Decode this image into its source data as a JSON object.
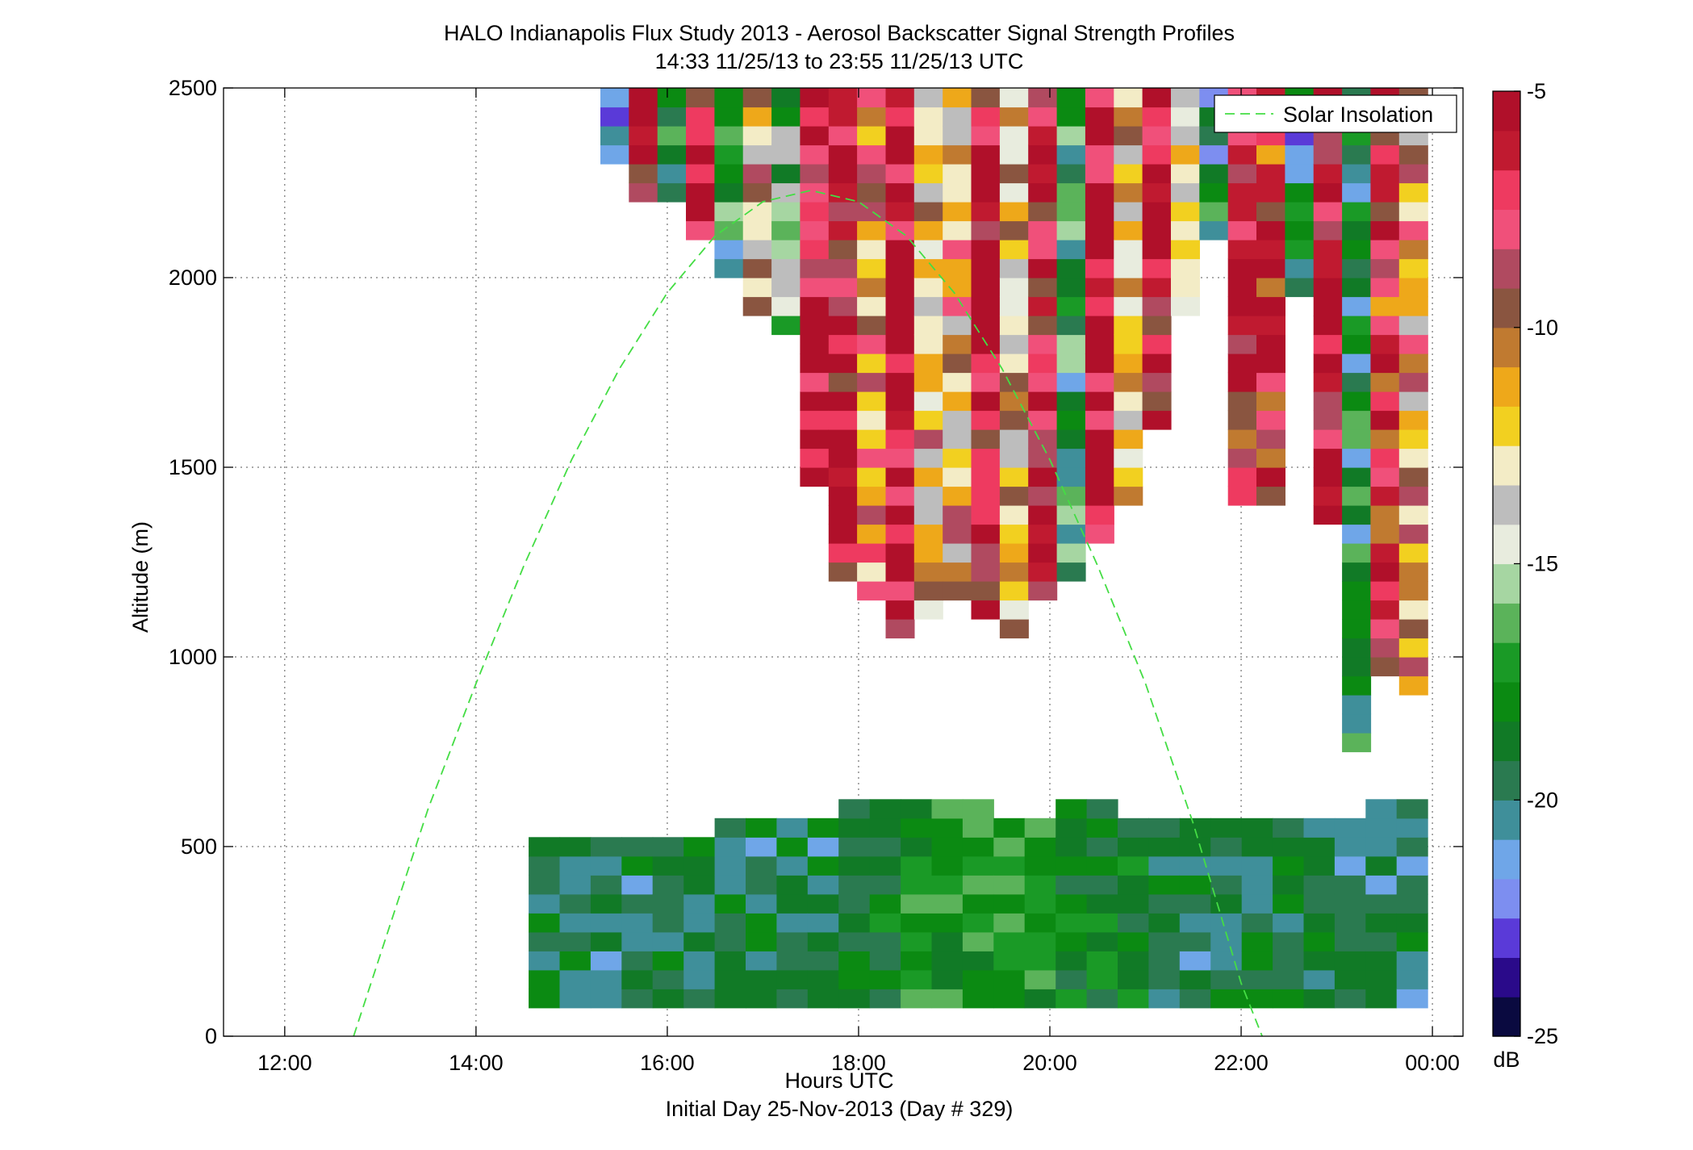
{
  "chart_data": {
    "type": "heatmap",
    "title": "HALO Indianapolis Flux Study 2013 - Aerosol Backscatter Signal Strength Profiles",
    "subtitle": "14:33 11/25/13 to 23:55 11/25/13  UTC",
    "xlabel": "Hours UTC",
    "xlabel2": "Initial Day 25-Nov-2013 (Day # 329)",
    "ylabel": "Altitude (m)",
    "xlim": [
      11.36,
      24.32
    ],
    "ylim": [
      0,
      2500
    ],
    "x_ticks": [
      12,
      14,
      16,
      18,
      20,
      22,
      24
    ],
    "x_tick_labels": [
      "12:00",
      "14:00",
      "16:00",
      "18:00",
      "20:00",
      "22:00",
      "00:00"
    ],
    "y_ticks": [
      0,
      500,
      1000,
      1500,
      2000,
      2500
    ],
    "y_tick_labels": [
      "0",
      "500",
      "1000",
      "1500",
      "2000",
      "2500"
    ],
    "grid": true,
    "colorbar": {
      "label": "dB",
      "min": -25,
      "max": -5,
      "tick_values": [
        -5,
        -10,
        -15,
        -20,
        -25
      ],
      "tick_labels": [
        "-5",
        "-10",
        "-15",
        "-20",
        "-25"
      ],
      "colors": [
        "#0a0a40",
        "#2a0a8a",
        "#5a3ad8",
        "#7d8ef0",
        "#6fa6e8",
        "#3f8f9a",
        "#2a7a50",
        "#117a26",
        "#0b8a12",
        "#1a9a26",
        "#5bb35a",
        "#a6d6a2",
        "#e8ecde",
        "#bdbdbd",
        "#f3ecc6",
        "#f2d020",
        "#eea81a",
        "#c07a30",
        "#8a5540",
        "#b04a60",
        "#f0507a",
        "#ee3a60",
        "#c01a30",
        "#b0102a"
      ]
    },
    "legend": {
      "entries": [
        "Solar Insolation"
      ],
      "position": "top-right"
    },
    "series": [
      {
        "name": "Solar Insolation",
        "style": "dashed",
        "color": "#44dd44",
        "x": [
          12.72,
          13.5,
          14.0,
          14.5,
          15.0,
          15.5,
          16.0,
          16.5,
          17.0,
          17.5,
          18.0,
          18.5,
          19.0,
          19.5,
          20.0,
          20.5,
          21.0,
          21.5,
          22.0,
          22.22
        ],
        "y": [
          0,
          600,
          930,
          1240,
          1520,
          1760,
          1960,
          2110,
          2200,
          2230,
          2200,
          2110,
          1960,
          1760,
          1520,
          1240,
          930,
          560,
          140,
          0
        ]
      }
    ],
    "profiles": {
      "time_start": 14.55,
      "time_step": 0.333,
      "altitude_bin": 50,
      "boundary_layer": {
        "x_start": 14.55,
        "x_end": 23.95,
        "bottom_m": 75,
        "top_m": [
          500,
          500,
          500,
          500,
          500,
          500,
          575,
          575,
          575,
          575,
          600,
          600,
          625,
          625,
          600,
          575,
          575,
          600,
          600,
          575,
          575,
          575,
          575,
          575,
          575,
          575,
          575,
          600,
          600
        ],
        "value_db": [
          -19.5,
          -19.5,
          -19.5,
          -19.5,
          -19.5,
          -19.5,
          -19.5,
          -19.5,
          -19.5,
          -19.5,
          -18.5,
          -18.5,
          -17.5,
          -17.5,
          -17.5,
          -17.5,
          -17.5,
          -18,
          -18.5,
          -18.5,
          -19,
          -19.5,
          -19.5,
          -19,
          -19,
          -19,
          -19.5,
          -19.5,
          -19.5
        ]
      },
      "aloft_layer": {
        "x_start": 15.3,
        "x_end": 23.95,
        "bottom_m": [
          2300,
          2200,
          2200,
          2100,
          2000,
          1900,
          1850,
          1450,
          1200,
          1150,
          1050,
          1100,
          1150,
          1100,
          1050,
          1150,
          1200,
          1300,
          1400,
          1600,
          1900,
          2100,
          1400,
          1400,
          1950,
          1350,
          750,
          950,
          900
        ],
        "top_m": [
          2500,
          2500,
          2500,
          2500,
          2500,
          2500,
          2500,
          2500,
          2500,
          2500,
          2500,
          2500,
          2500,
          2500,
          2500,
          2500,
          2500,
          2500,
          2500,
          2500,
          2500,
          2500,
          2500,
          2500,
          2500,
          2500,
          2500,
          2500,
          2500
        ],
        "value_db": [
          -21,
          -7,
          -18,
          -7,
          -18,
          -12,
          -16,
          -6,
          -7,
          -10,
          -6,
          -12,
          -11,
          -7,
          -12,
          -7,
          -18,
          -6,
          -12,
          -7,
          -13,
          -19,
          -8,
          -8,
          -20,
          -6,
          -19,
          -8,
          -11
        ]
      }
    }
  }
}
